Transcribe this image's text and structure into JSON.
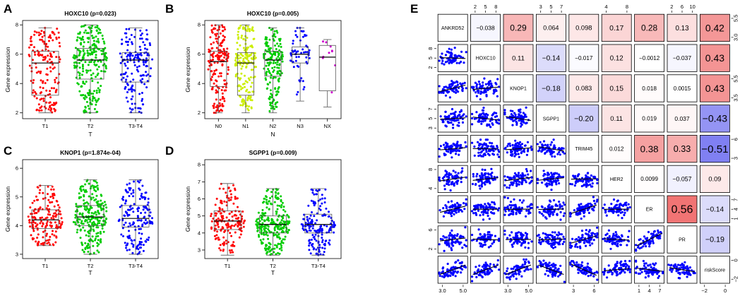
{
  "chart_data": {
    "boxplots": [
      {
        "panel": "A",
        "type": "box",
        "title": "HOXC10 (p=0.023)",
        "xlabel": "T",
        "ylabel": "Gene expression",
        "yticks": [
          2,
          4,
          6,
          8
        ],
        "ylim": [
          1.6,
          8.3
        ],
        "groups": [
          {
            "name": "T1",
            "color": "#FF0000",
            "min": 2.0,
            "q1": 3.2,
            "median": 5.4,
            "q3": 6.2,
            "max": 7.8
          },
          {
            "name": "T2",
            "color": "#00CC00",
            "min": 2.0,
            "q1": 4.3,
            "median": 5.6,
            "q3": 6.4,
            "max": 8.0
          },
          {
            "name": "T3-T4",
            "color": "#0000FF",
            "min": 2.0,
            "q1": 4.1,
            "median": 5.6,
            "q3": 6.1,
            "max": 7.8
          }
        ]
      },
      {
        "panel": "B",
        "type": "box",
        "title": "HOXC10 (p=0.005)",
        "xlabel": "N",
        "ylabel": "Gene expression",
        "yticks": [
          2,
          4,
          6,
          8
        ],
        "ylim": [
          1.6,
          8.3
        ],
        "groups": [
          {
            "name": "N0",
            "color": "#FF0000",
            "min": 2.0,
            "q1": 3.8,
            "median": 5.5,
            "q3": 6.2,
            "max": 8.0
          },
          {
            "name": "N1",
            "color": "#CCEE00",
            "min": 2.0,
            "q1": 3.2,
            "median": 5.4,
            "q3": 6.1,
            "max": 8.0
          },
          {
            "name": "N2",
            "color": "#00CC00",
            "min": 2.0,
            "q1": 4.5,
            "median": 5.6,
            "q3": 6.2,
            "max": 7.8
          },
          {
            "name": "N3",
            "color": "#0000FF",
            "min": 2.8,
            "q1": 5.4,
            "median": 6.0,
            "q3": 6.5,
            "max": 7.8
          },
          {
            "name": "NX",
            "color": "#CC00CC",
            "min": 2.4,
            "q1": 3.5,
            "median": 5.8,
            "q3": 6.6,
            "max": 7.0
          }
        ]
      },
      {
        "panel": "C",
        "type": "box",
        "title": "KNOP1 (p=1.874e-04)",
        "xlabel": "T",
        "ylabel": "Gene expression",
        "yticks": [
          3,
          4,
          5,
          6
        ],
        "ylim": [
          2.85,
          6.3
        ],
        "groups": [
          {
            "name": "T1",
            "color": "#FF0000",
            "min": 3.3,
            "q1": 3.9,
            "median": 4.2,
            "q3": 4.55,
            "max": 5.4
          },
          {
            "name": "T2",
            "color": "#00CC00",
            "min": 3.0,
            "q1": 4.0,
            "median": 4.3,
            "q3": 4.7,
            "max": 5.6
          },
          {
            "name": "T3-T4",
            "color": "#0000FF",
            "min": 3.0,
            "q1": 3.95,
            "median": 4.25,
            "q3": 4.7,
            "max": 5.6
          }
        ]
      },
      {
        "panel": "D",
        "type": "box",
        "title": "SGPP1 (p=0.009)",
        "xlabel": "T",
        "ylabel": "Gene expression",
        "yticks": [
          3,
          4,
          5,
          6,
          7,
          8
        ],
        "ylim": [
          2.5,
          8.3
        ],
        "groups": [
          {
            "name": "T1",
            "color": "#FF0000",
            "min": 2.7,
            "q1": 4.2,
            "median": 4.7,
            "q3": 5.3,
            "max": 6.9
          },
          {
            "name": "T2",
            "color": "#00CC00",
            "min": 2.7,
            "q1": 4.0,
            "median": 4.5,
            "q3": 5.0,
            "max": 6.6
          },
          {
            "name": "T3-T4",
            "color": "#0000FF",
            "min": 2.7,
            "q1": 4.0,
            "median": 4.5,
            "q3": 5.1,
            "max": 6.6
          }
        ]
      }
    ],
    "matrix": {
      "panel": "E",
      "type": "scatter-matrix",
      "variables": [
        "ANKRD52",
        "HOXC10",
        "KNOP1",
        "SGPP1",
        "TRIM45",
        "HER2",
        "ER",
        "PR",
        "riskScore"
      ],
      "correlations": [
        {
          "r": 0,
          "c": 1,
          "label": "−0.038",
          "value": -0.038
        },
        {
          "r": 0,
          "c": 2,
          "label": "0.29",
          "value": 0.29
        },
        {
          "r": 0,
          "c": 3,
          "label": "0.064",
          "value": 0.064
        },
        {
          "r": 0,
          "c": 4,
          "label": "0.098",
          "value": 0.098
        },
        {
          "r": 0,
          "c": 5,
          "label": "0.17",
          "value": 0.17
        },
        {
          "r": 0,
          "c": 6,
          "label": "0.28",
          "value": 0.28
        },
        {
          "r": 0,
          "c": 7,
          "label": "0.13",
          "value": 0.13
        },
        {
          "r": 0,
          "c": 8,
          "label": "0.42",
          "value": 0.42
        },
        {
          "r": 1,
          "c": 2,
          "label": "0.11",
          "value": 0.11
        },
        {
          "r": 1,
          "c": 3,
          "label": "−0.14",
          "value": -0.14
        },
        {
          "r": 1,
          "c": 4,
          "label": "−0.017",
          "value": -0.017
        },
        {
          "r": 1,
          "c": 5,
          "label": "0.12",
          "value": 0.12
        },
        {
          "r": 1,
          "c": 6,
          "label": "−0.0012",
          "value": -0.0012
        },
        {
          "r": 1,
          "c": 7,
          "label": "−0.037",
          "value": -0.037
        },
        {
          "r": 1,
          "c": 8,
          "label": "0.43",
          "value": 0.43
        },
        {
          "r": 2,
          "c": 3,
          "label": "−0.18",
          "value": -0.18
        },
        {
          "r": 2,
          "c": 4,
          "label": "0.083",
          "value": 0.083
        },
        {
          "r": 2,
          "c": 5,
          "label": "0.15",
          "value": 0.15
        },
        {
          "r": 2,
          "c": 6,
          "label": "0.018",
          "value": 0.018
        },
        {
          "r": 2,
          "c": 7,
          "label": "0.0015",
          "value": 0.0015
        },
        {
          "r": 2,
          "c": 8,
          "label": "0.43",
          "value": 0.43
        },
        {
          "r": 3,
          "c": 4,
          "label": "−0.20",
          "value": -0.2
        },
        {
          "r": 3,
          "c": 5,
          "label": "0.11",
          "value": 0.11
        },
        {
          "r": 3,
          "c": 6,
          "label": "0.019",
          "value": 0.019
        },
        {
          "r": 3,
          "c": 7,
          "label": "0.037",
          "value": 0.037
        },
        {
          "r": 3,
          "c": 8,
          "label": "−0.43",
          "value": -0.43
        },
        {
          "r": 4,
          "c": 5,
          "label": "0.012",
          "value": 0.012
        },
        {
          "r": 4,
          "c": 6,
          "label": "0.38",
          "value": 0.38
        },
        {
          "r": 4,
          "c": 7,
          "label": "0.33",
          "value": 0.33
        },
        {
          "r": 4,
          "c": 8,
          "label": "−0.51",
          "value": -0.51
        },
        {
          "r": 5,
          "c": 6,
          "label": "0.0099",
          "value": 0.0099
        },
        {
          "r": 5,
          "c": 7,
          "label": "−0.057",
          "value": -0.057
        },
        {
          "r": 5,
          "c": 8,
          "label": "0.09",
          "value": 0.09
        },
        {
          "r": 6,
          "c": 7,
          "label": "0.56",
          "value": 0.56
        },
        {
          "r": 6,
          "c": 8,
          "label": "−0.14",
          "value": -0.14
        },
        {
          "r": 7,
          "c": 8,
          "label": "−0.19",
          "value": -0.19
        }
      ],
      "top_axis": [
        {
          "col": 1,
          "ticks": [
            "2",
            "5",
            "8"
          ]
        },
        {
          "col": 3,
          "ticks": [
            "3",
            "5",
            "7"
          ]
        },
        {
          "col": 5,
          "ticks": [
            "4",
            "8"
          ]
        },
        {
          "col": 7,
          "ticks": [
            "2",
            "6",
            "10"
          ]
        }
      ],
      "bottom_axis": [
        {
          "col": 0,
          "ticks": [
            "3.0",
            "5.0"
          ]
        },
        {
          "col": 2,
          "ticks": [
            "3.0",
            "5.0"
          ]
        },
        {
          "col": 4,
          "ticks": [
            "3",
            "6"
          ]
        },
        {
          "col": 6,
          "ticks": [
            "1",
            "4",
            "7"
          ]
        },
        {
          "col": 8,
          "ticks": [
            "−2",
            "0"
          ]
        }
      ],
      "left_axis": [
        {
          "row": 1,
          "ticks": [
            "2",
            "5",
            "8"
          ]
        },
        {
          "row": 3,
          "ticks": [
            "3",
            "5",
            "7"
          ]
        },
        {
          "row": 5,
          "ticks": [
            "4",
            "8"
          ]
        },
        {
          "row": 7,
          "ticks": [
            "2",
            "6"
          ]
        }
      ],
      "right_axis": [
        {
          "row": 0,
          "ticks": [
            "3.0",
            "5.5"
          ]
        },
        {
          "row": 2,
          "ticks": [
            "3.5",
            "5.5"
          ]
        },
        {
          "row": 4,
          "ticks": [
            "3",
            "6"
          ]
        },
        {
          "row": 6,
          "ticks": [
            "1",
            "4",
            "7"
          ]
        },
        {
          "row": 8,
          "ticks": [
            "−2",
            "0"
          ]
        }
      ]
    }
  },
  "colors": {
    "positive": "#EF6262",
    "negative": "#6262EF",
    "scatter": "#0000FF"
  }
}
